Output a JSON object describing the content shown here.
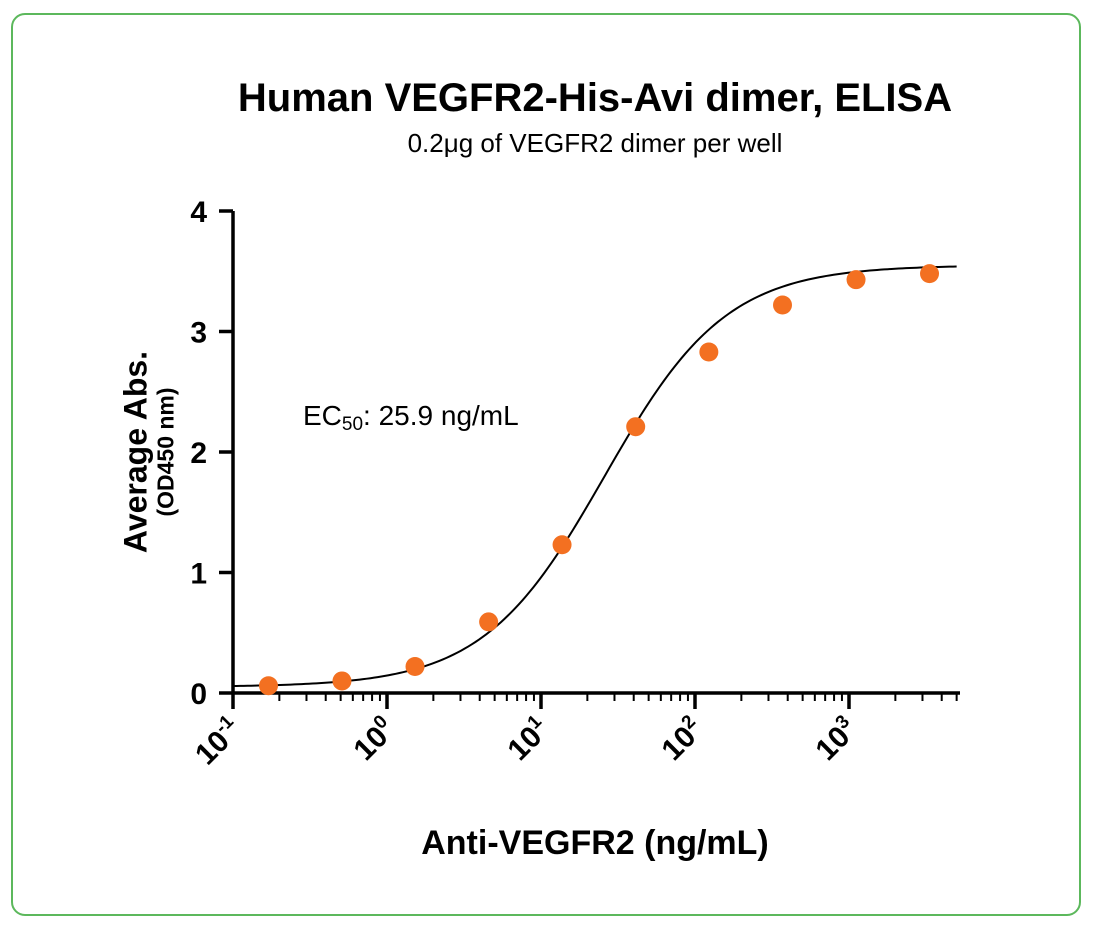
{
  "chart_data": {
    "type": "scatter",
    "title": "Human VEGFR2-His-Avi dimer, ELISA",
    "subtitle": "0.2μg of VEGFR2 dimer per well",
    "xlabel": "Anti-VEGFR2 (ng/mL)",
    "ylabel": "Average Abs.",
    "ylabel_sub": "(OD450 nm)",
    "xscale": "log",
    "xlim": [
      0.1,
      5000
    ],
    "ylim": [
      0,
      4
    ],
    "yticks": [
      "0",
      "1",
      "2",
      "3",
      "4"
    ],
    "xticks": [
      {
        "base": "10",
        "exp": "-1",
        "value": 0.1
      },
      {
        "base": "10",
        "exp": "0",
        "value": 1
      },
      {
        "base": "10",
        "exp": "1",
        "value": 10
      },
      {
        "base": "10",
        "exp": "2",
        "value": 100
      },
      {
        "base": "10",
        "exp": "3",
        "value": 1000
      }
    ],
    "series": [
      {
        "x": [
          0.17,
          0.51,
          1.52,
          4.57,
          13.7,
          41.2,
          123,
          370,
          1111,
          3333
        ],
        "y": [
          0.06,
          0.1,
          0.22,
          0.59,
          1.23,
          2.21,
          2.83,
          3.22,
          3.43,
          3.48
        ],
        "color": "#f37021"
      }
    ],
    "fit": {
      "model": "4PL",
      "bottom": 0.05,
      "top": 3.55,
      "ec50": 25.9,
      "hill": 1.1,
      "color": "#000000"
    },
    "annotation": {
      "prefix": "EC",
      "sub": "50",
      "suffix": ": 25.9 ng/mL"
    },
    "grid": false,
    "legend": "none"
  },
  "colors": {
    "border": "#5cb85c",
    "point": "#f37021",
    "axis": "#000000"
  }
}
